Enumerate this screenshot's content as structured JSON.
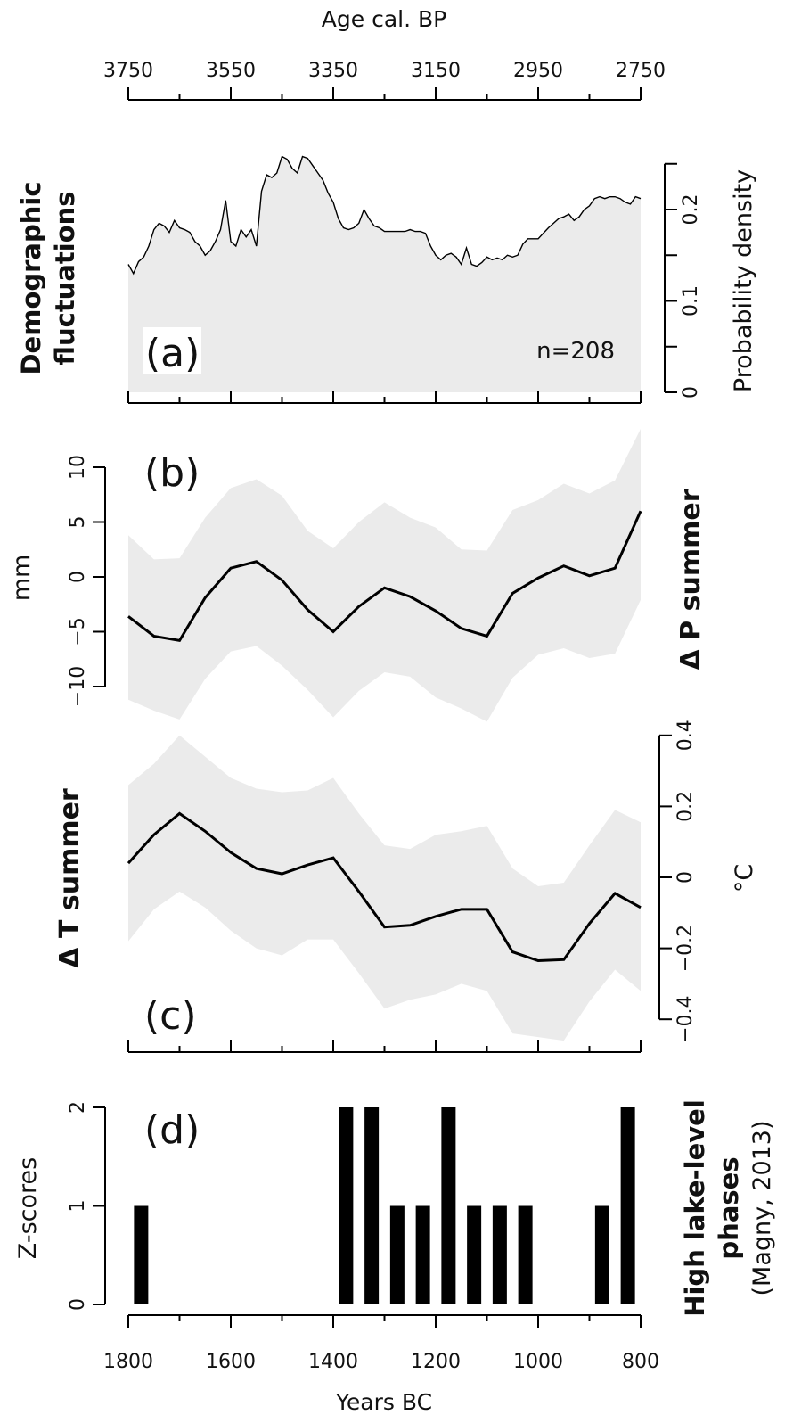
{
  "top_axis": {
    "label": "Age cal. BP",
    "ticks": [
      "3750",
      "3550",
      "3350",
      "3150",
      "2950",
      "2750"
    ]
  },
  "bottom_axis": {
    "label": "Years BC",
    "ticks": [
      "1800",
      "1600",
      "1400",
      "1200",
      "1000",
      "800"
    ]
  },
  "colors": {
    "band": "#ebebeb",
    "line": "#000000",
    "bar": "#000000"
  },
  "chart_data": [
    {
      "id": "a",
      "type": "area",
      "panel_letter": "(a)",
      "side_title": [
        "Demographic",
        "fluctuations"
      ],
      "annotation": "n=208",
      "ylabel": "Probability density",
      "yticks": [
        "0",
        "0.1",
        "0.2"
      ],
      "ylim": [
        0,
        0.25
      ],
      "x_unit": "Years BC",
      "x": [
        1800,
        1790,
        1780,
        1770,
        1760,
        1750,
        1740,
        1730,
        1720,
        1710,
        1700,
        1690,
        1680,
        1670,
        1660,
        1650,
        1640,
        1630,
        1620,
        1610,
        1600,
        1590,
        1580,
        1570,
        1560,
        1550,
        1540,
        1530,
        1520,
        1510,
        1500,
        1490,
        1480,
        1470,
        1460,
        1450,
        1440,
        1430,
        1420,
        1410,
        1400,
        1390,
        1380,
        1370,
        1360,
        1350,
        1340,
        1330,
        1320,
        1310,
        1300,
        1290,
        1280,
        1270,
        1260,
        1250,
        1240,
        1230,
        1220,
        1210,
        1200,
        1190,
        1180,
        1170,
        1160,
        1150,
        1140,
        1130,
        1120,
        1110,
        1100,
        1090,
        1080,
        1070,
        1060,
        1050,
        1040,
        1030,
        1020,
        1010,
        1000,
        990,
        980,
        970,
        960,
        950,
        940,
        930,
        920,
        910,
        900,
        890,
        880,
        870,
        860,
        850,
        840,
        830,
        820,
        810,
        800
      ],
      "values": [
        0.14,
        0.13,
        0.143,
        0.148,
        0.16,
        0.178,
        0.185,
        0.182,
        0.175,
        0.188,
        0.18,
        0.178,
        0.175,
        0.165,
        0.16,
        0.15,
        0.155,
        0.165,
        0.178,
        0.21,
        0.165,
        0.16,
        0.178,
        0.17,
        0.178,
        0.16,
        0.22,
        0.238,
        0.235,
        0.24,
        0.258,
        0.255,
        0.245,
        0.24,
        0.258,
        0.256,
        0.248,
        0.24,
        0.232,
        0.218,
        0.208,
        0.19,
        0.18,
        0.178,
        0.18,
        0.185,
        0.2,
        0.19,
        0.182,
        0.18,
        0.176,
        0.176,
        0.176,
        0.176,
        0.176,
        0.178,
        0.176,
        0.176,
        0.174,
        0.16,
        0.15,
        0.145,
        0.15,
        0.152,
        0.148,
        0.14,
        0.158,
        0.14,
        0.138,
        0.142,
        0.148,
        0.145,
        0.147,
        0.145,
        0.15,
        0.148,
        0.15,
        0.162,
        0.168,
        0.168,
        0.168,
        0.174,
        0.18,
        0.185,
        0.19,
        0.192,
        0.195,
        0.188,
        0.192,
        0.2,
        0.204,
        0.212,
        0.214,
        0.212,
        0.214,
        0.214,
        0.212,
        0.208,
        0.206,
        0.214,
        0.212
      ]
    },
    {
      "id": "b",
      "type": "line",
      "panel_letter": "(b)",
      "side_title": "Δ P summer",
      "ylabel": "mm",
      "yticks": [
        "−10",
        "−5",
        "0",
        "5",
        "10"
      ],
      "ylim": [
        -11.5,
        13.5
      ],
      "x_unit": "Years BC",
      "x": [
        1800,
        1750,
        1700,
        1650,
        1600,
        1550,
        1500,
        1450,
        1400,
        1350,
        1300,
        1250,
        1200,
        1150,
        1100,
        1050,
        1000,
        950,
        900,
        850,
        800
      ],
      "values": [
        -3.6,
        -5.4,
        -5.8,
        -1.9,
        0.8,
        1.4,
        -0.3,
        -3.0,
        -5.0,
        -2.7,
        -1.0,
        -1.8,
        -3.1,
        -4.7,
        -5.4,
        -1.5,
        -0.1,
        1.0,
        0.1,
        0.8,
        6.0
      ],
      "upper": [
        3.8,
        1.6,
        1.7,
        5.4,
        8.1,
        8.9,
        7.4,
        4.2,
        2.6,
        5.0,
        6.8,
        5.4,
        4.5,
        2.5,
        2.4,
        6.1,
        7.0,
        8.5,
        7.6,
        8.8,
        13.5
      ],
      "lower": [
        -11.2,
        -12.2,
        -13.0,
        -9.3,
        -6.8,
        -6.3,
        -8.1,
        -10.3,
        -12.8,
        -10.4,
        -8.7,
        -9.1,
        -11.0,
        -12.0,
        -13.2,
        -9.2,
        -7.1,
        -6.5,
        -7.4,
        -7.0,
        -2.1
      ]
    },
    {
      "id": "c",
      "type": "line",
      "panel_letter": "(c)",
      "side_title": "Δ T summer",
      "ylabel": "°C",
      "yticks": [
        "−0.4",
        "−0.2",
        "0",
        "0.2",
        "0.4"
      ],
      "ylim": [
        -0.47,
        0.4
      ],
      "x_unit": "Years BC",
      "x": [
        1800,
        1750,
        1700,
        1650,
        1600,
        1550,
        1500,
        1450,
        1400,
        1350,
        1300,
        1250,
        1200,
        1150,
        1100,
        1050,
        1000,
        950,
        900,
        850,
        800
      ],
      "values": [
        0.04,
        0.12,
        0.18,
        0.13,
        0.07,
        0.025,
        0.01,
        0.035,
        0.055,
        -0.04,
        -0.14,
        -0.135,
        -0.11,
        -0.09,
        -0.09,
        -0.21,
        -0.235,
        -0.232,
        -0.13,
        -0.045,
        -0.085
      ],
      "upper": [
        0.26,
        0.32,
        0.4,
        0.34,
        0.28,
        0.25,
        0.24,
        0.245,
        0.28,
        0.18,
        0.09,
        0.08,
        0.12,
        0.13,
        0.145,
        0.025,
        -0.025,
        -0.015,
        0.09,
        0.19,
        0.155
      ],
      "lower": [
        -0.18,
        -0.09,
        -0.04,
        -0.085,
        -0.15,
        -0.2,
        -0.22,
        -0.175,
        -0.175,
        -0.27,
        -0.37,
        -0.345,
        -0.33,
        -0.3,
        -0.32,
        -0.44,
        -0.45,
        -0.46,
        -0.35,
        -0.26,
        -0.32
      ]
    },
    {
      "id": "d",
      "type": "bar",
      "panel_letter": "(d)",
      "side_title": [
        "High lake-level",
        "phases"
      ],
      "side_subtitle": "(Magny, 2013)",
      "ylabel": "Z-scores",
      "yticks": [
        "0",
        "1",
        "2"
      ],
      "ylim": [
        0,
        2
      ],
      "x_unit": "Years BC",
      "x": [
        1775,
        1375,
        1325,
        1275,
        1225,
        1175,
        1125,
        1075,
        1025,
        875,
        825
      ],
      "values": [
        1,
        2,
        2,
        1,
        1,
        2,
        1,
        1,
        1,
        1,
        2
      ]
    }
  ]
}
